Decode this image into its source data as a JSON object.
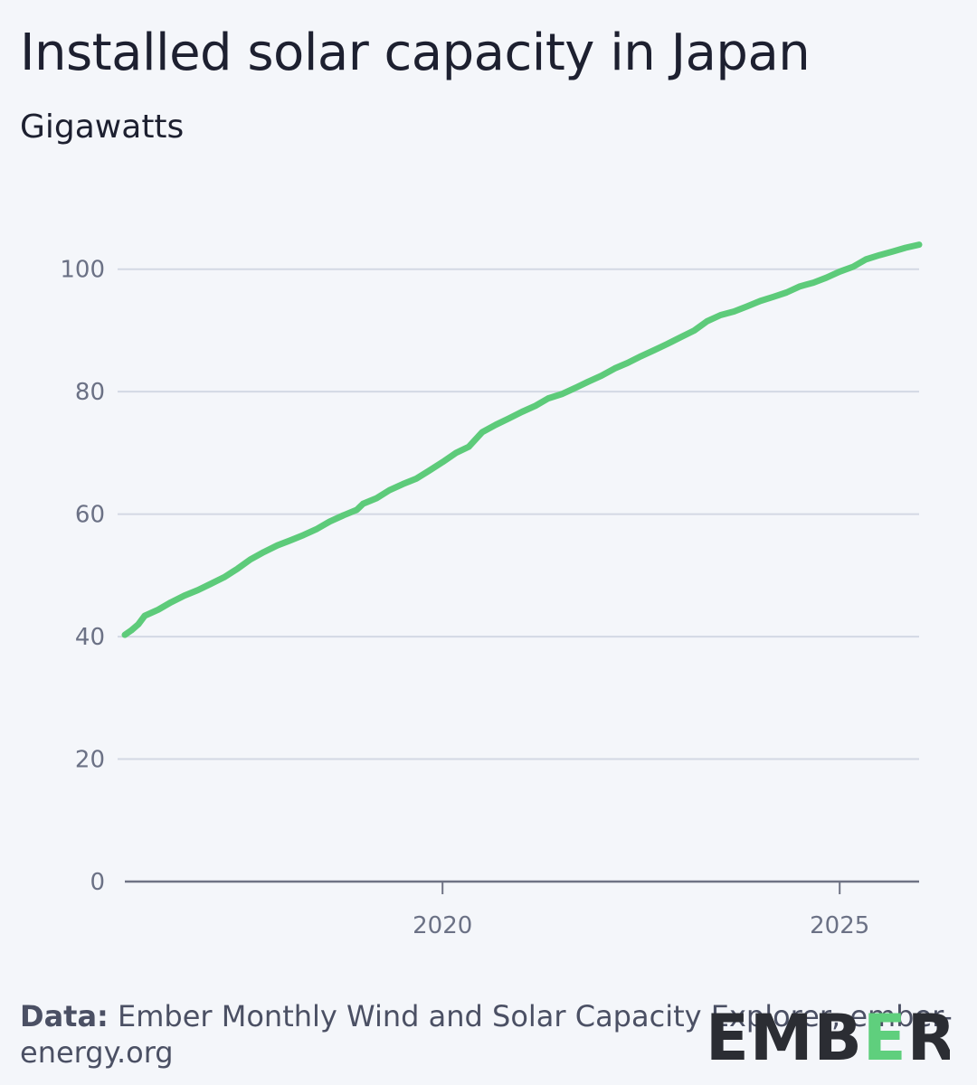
{
  "source": {
    "lead": "Data:",
    "text": "Ember Monthly Wind and Solar Capacity Explorer, ember-energy.org"
  },
  "logo": {
    "text": "EMBER",
    "accent_color": "#5fcf7d",
    "text_color": "#2b2d33"
  },
  "chart_data": {
    "type": "line",
    "title": "Installed solar capacity in Japan",
    "subtitle": "Gigawatts",
    "xlabel": "",
    "ylabel": "",
    "x_ticks": [
      2020,
      2025
    ],
    "y_ticks": [
      0,
      20,
      40,
      60,
      80,
      100
    ],
    "xlim": [
      2016.0,
      2026.0
    ],
    "ylim": [
      0,
      110
    ],
    "grid": "horizontal",
    "legend": "none",
    "line_color": "#5dcb7a",
    "series": [
      {
        "values": [
          [
            2016.0,
            40.3
          ],
          [
            2016.08,
            41.0
          ],
          [
            2016.17,
            42.0
          ],
          [
            2016.25,
            43.4
          ],
          [
            2016.42,
            44.4
          ],
          [
            2016.58,
            45.6
          ],
          [
            2016.75,
            46.7
          ],
          [
            2016.92,
            47.6
          ],
          [
            2017.08,
            48.6
          ],
          [
            2017.25,
            49.7
          ],
          [
            2017.42,
            51.1
          ],
          [
            2017.58,
            52.6
          ],
          [
            2017.75,
            53.8
          ],
          [
            2017.92,
            54.9
          ],
          [
            2018.08,
            55.7
          ],
          [
            2018.25,
            56.6
          ],
          [
            2018.42,
            57.6
          ],
          [
            2018.58,
            58.8
          ],
          [
            2018.75,
            59.8
          ],
          [
            2018.92,
            60.7
          ],
          [
            2019.0,
            61.7
          ],
          [
            2019.17,
            62.6
          ],
          [
            2019.33,
            63.9
          ],
          [
            2019.5,
            64.9
          ],
          [
            2019.67,
            65.8
          ],
          [
            2019.83,
            67.1
          ],
          [
            2020.0,
            68.5
          ],
          [
            2020.17,
            70.0
          ],
          [
            2020.33,
            71.0
          ],
          [
            2020.5,
            73.4
          ],
          [
            2020.67,
            74.6
          ],
          [
            2020.83,
            75.6
          ],
          [
            2021.0,
            76.7
          ],
          [
            2021.17,
            77.7
          ],
          [
            2021.33,
            78.9
          ],
          [
            2021.5,
            79.6
          ],
          [
            2021.67,
            80.6
          ],
          [
            2021.83,
            81.6
          ],
          [
            2022.0,
            82.6
          ],
          [
            2022.17,
            83.8
          ],
          [
            2022.33,
            84.7
          ],
          [
            2022.5,
            85.8
          ],
          [
            2022.67,
            86.8
          ],
          [
            2022.83,
            87.8
          ],
          [
            2023.0,
            88.9
          ],
          [
            2023.17,
            90.0
          ],
          [
            2023.33,
            91.5
          ],
          [
            2023.5,
            92.5
          ],
          [
            2023.67,
            93.1
          ],
          [
            2023.83,
            93.9
          ],
          [
            2024.0,
            94.8
          ],
          [
            2024.17,
            95.5
          ],
          [
            2024.33,
            96.2
          ],
          [
            2024.5,
            97.2
          ],
          [
            2024.67,
            97.8
          ],
          [
            2024.83,
            98.6
          ],
          [
            2025.0,
            99.6
          ],
          [
            2025.17,
            100.4
          ],
          [
            2025.33,
            101.6
          ],
          [
            2025.5,
            102.3
          ],
          [
            2025.67,
            102.9
          ],
          [
            2025.83,
            103.5
          ],
          [
            2026.0,
            104.0
          ]
        ]
      }
    ]
  }
}
